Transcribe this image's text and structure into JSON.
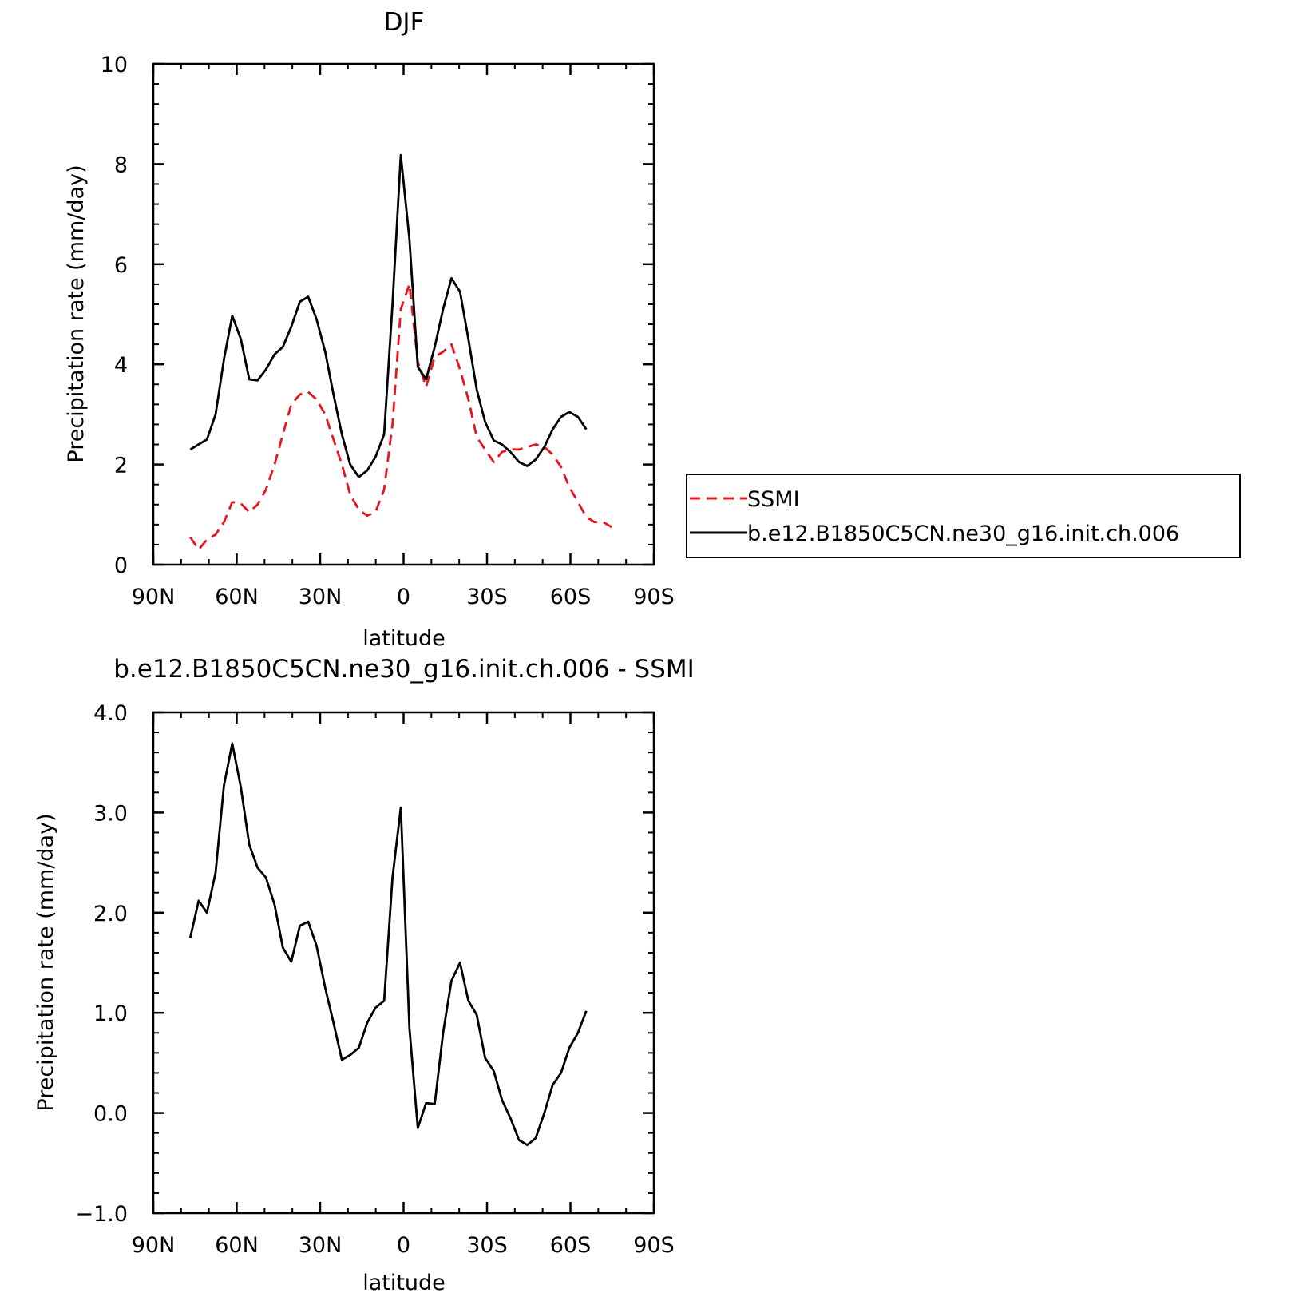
{
  "chart_data": [
    {
      "type": "line",
      "title": "DJF",
      "xlabel": "latitude",
      "ylabel": "Precipitation rate (mm/day)",
      "xlim": [
        90,
        -90
      ],
      "ylim": [
        0,
        10
      ],
      "x_tick_values": [
        90,
        60,
        30,
        0,
        -30,
        -60,
        -90
      ],
      "x_tick_labels": [
        "90N",
        "60N",
        "30N",
        "0",
        "30S",
        "60S",
        "90S"
      ],
      "y_tick_values": [
        0,
        2,
        4,
        6,
        8,
        10
      ],
      "y_tick_labels": [
        "0",
        "2",
        "4",
        "6",
        "8",
        "10"
      ],
      "grid": false,
      "legend_position": "right",
      "series": [
        {
          "name": "SSMI",
          "color": "#e8141e",
          "style": "dashed",
          "x": [
            76.7,
            73.7,
            70.7,
            67.6,
            64.6,
            61.6,
            58.5,
            55.5,
            52.5,
            49.5,
            46.4,
            43.4,
            40.4,
            37.3,
            34.3,
            31.3,
            28.2,
            25.2,
            22.2,
            19.2,
            16.1,
            13.1,
            10.1,
            7.0,
            4.0,
            1.0,
            -2.1,
            -5.1,
            -8.1,
            -11.2,
            -14.2,
            -17.2,
            -20.3,
            -23.3,
            -26.3,
            -29.3,
            -32.4,
            -35.4,
            -38.4,
            -41.5,
            -44.5,
            -47.5,
            -50.6,
            -53.6,
            -56.6,
            -59.6,
            -62.7,
            -65.7,
            -68.7,
            -71.8,
            -74.8
          ],
          "values": [
            0.55,
            0.3,
            0.5,
            0.6,
            0.85,
            1.25,
            1.22,
            1.05,
            1.2,
            1.5,
            2.0,
            2.6,
            3.2,
            3.4,
            3.45,
            3.3,
            3.0,
            2.5,
            2.0,
            1.4,
            1.1,
            0.98,
            1.05,
            1.5,
            2.8,
            5.1,
            5.6,
            4.05,
            3.55,
            4.15,
            4.25,
            4.4,
            3.9,
            3.3,
            2.55,
            2.3,
            2.05,
            2.25,
            2.3,
            2.3,
            2.35,
            2.4,
            2.35,
            2.2,
            1.95,
            1.55,
            1.25,
            0.95,
            0.85,
            0.85,
            0.75
          ]
        },
        {
          "name": "b.e12.B1850C5CN.ne30_g16.init.ch.006",
          "color": "#000000",
          "style": "solid",
          "x": [
            76.7,
            73.7,
            70.7,
            67.6,
            64.6,
            61.6,
            58.5,
            55.5,
            52.5,
            49.5,
            46.4,
            43.4,
            40.4,
            37.3,
            34.3,
            31.3,
            28.2,
            25.2,
            22.2,
            19.2,
            16.1,
            13.1,
            10.1,
            7.0,
            4.0,
            1.0,
            -2.1,
            -5.1,
            -8.1,
            -11.2,
            -14.2,
            -17.2,
            -20.3,
            -23.3,
            -26.3,
            -29.3,
            -32.4,
            -35.4,
            -38.4,
            -41.5,
            -44.5,
            -47.5,
            -50.6,
            -53.6,
            -56.6,
            -59.6,
            -62.7,
            -65.7
          ],
          "values": [
            2.3,
            2.4,
            2.5,
            3.0,
            4.1,
            4.97,
            4.5,
            3.7,
            3.68,
            3.9,
            4.2,
            4.35,
            4.75,
            5.25,
            5.35,
            4.9,
            4.25,
            3.4,
            2.6,
            2.0,
            1.75,
            1.88,
            2.15,
            2.6,
            5.2,
            8.18,
            6.5,
            3.95,
            3.7,
            4.35,
            5.1,
            5.72,
            5.45,
            4.5,
            3.5,
            2.85,
            2.48,
            2.4,
            2.25,
            2.05,
            1.97,
            2.1,
            2.35,
            2.7,
            2.95,
            3.05,
            2.95,
            2.7
          ]
        }
      ]
    },
    {
      "type": "line",
      "title": "b.e12.B1850C5CN.ne30_g16.init.ch.006 - SSMI",
      "xlabel": "latitude",
      "ylabel": "Precipitation rate (mm/day)",
      "xlim": [
        90,
        -90
      ],
      "ylim": [
        -1.0,
        4.0
      ],
      "x_tick_values": [
        90,
        60,
        30,
        0,
        -30,
        -60,
        -90
      ],
      "x_tick_labels": [
        "90N",
        "60N",
        "30N",
        "0",
        "30S",
        "60S",
        "90S"
      ],
      "y_tick_values": [
        -1.0,
        0.0,
        1.0,
        2.0,
        3.0,
        4.0
      ],
      "y_tick_labels": [
        "−1.0",
        "0.0",
        "1.0",
        "2.0",
        "3.0",
        "4.0"
      ],
      "grid": false,
      "series": [
        {
          "color": "#000000",
          "style": "solid",
          "x": [
            76.7,
            73.7,
            70.7,
            67.6,
            64.6,
            61.6,
            58.5,
            55.5,
            52.5,
            49.5,
            46.4,
            43.4,
            40.4,
            37.3,
            34.3,
            31.3,
            28.2,
            25.2,
            22.2,
            19.2,
            16.1,
            13.1,
            10.1,
            7.0,
            4.0,
            1.0,
            -2.1,
            -5.1,
            -8.1,
            -11.2,
            -14.2,
            -17.2,
            -20.3,
            -23.3,
            -26.3,
            -29.3,
            -32.4,
            -35.4,
            -38.4,
            -41.5,
            -44.5,
            -47.5,
            -50.6,
            -53.6,
            -56.6,
            -59.6,
            -62.7,
            -65.7
          ],
          "values": [
            1.75,
            2.12,
            2.0,
            2.4,
            3.27,
            3.69,
            3.25,
            2.68,
            2.45,
            2.35,
            2.08,
            1.65,
            1.51,
            1.87,
            1.91,
            1.67,
            1.25,
            0.9,
            0.53,
            0.58,
            0.65,
            0.9,
            1.05,
            1.12,
            2.35,
            3.05,
            0.85,
            -0.15,
            0.1,
            0.09,
            0.8,
            1.32,
            1.5,
            1.12,
            0.98,
            0.55,
            0.42,
            0.13,
            -0.05,
            -0.27,
            -0.32,
            -0.25,
            0.0,
            0.28,
            0.4,
            0.65,
            0.8,
            1.02
          ]
        }
      ]
    }
  ],
  "legend": [
    {
      "label": "SSMI",
      "color": "#e8141e",
      "style": "dashed"
    },
    {
      "label": "b.e12.B1850C5CN.ne30_g16.init.ch.006",
      "color": "#000000",
      "style": "solid"
    }
  ]
}
